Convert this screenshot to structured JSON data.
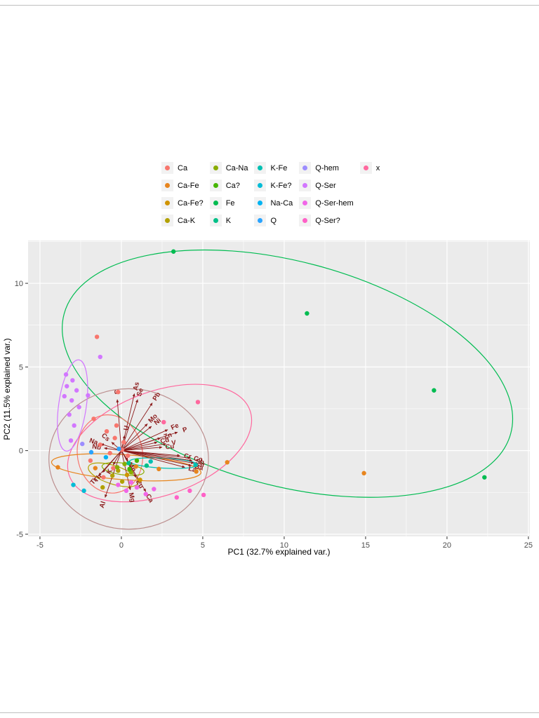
{
  "page": {
    "background": "#FFFFFF"
  },
  "axis": {
    "xlabel": "PC1 (32.7% explained var.)",
    "ylabel": "PC2 (11.5% explained var.)"
  },
  "chart_data": {
    "type": "scatter",
    "title": "",
    "xlabel": "PC1 (32.7% explained var.)",
    "ylabel": "PC2 (11.5% explained var.)",
    "xlim": [
      -5.73,
      25.09
    ],
    "ylim": [
      -5.13,
      12.56
    ],
    "x_ticks": [
      -5,
      0,
      5,
      10,
      15,
      20,
      25
    ],
    "y_ticks": [
      -5,
      0,
      5,
      10
    ],
    "x_minor": [
      -2.5,
      2.5,
      7.5,
      12.5,
      17.5,
      22.5
    ],
    "y_minor": [
      -2.5,
      2.5,
      7.5,
      12.5
    ],
    "panel_bg": "#EBEBEB",
    "grid_color": "#FFFFFF",
    "axis_text_color": "#4D4D4D",
    "arrow_color": "#8B1A1A",
    "legend_position": "top",
    "grid": true,
    "groups": [
      {
        "name": "Ca",
        "color": "#F8766D"
      },
      {
        "name": "Ca-Fe",
        "color": "#E7851E"
      },
      {
        "name": "Ca-Fe?",
        "color": "#D09400"
      },
      {
        "name": "Ca-K",
        "color": "#B2A100"
      },
      {
        "name": "Ca-Na",
        "color": "#89AC00"
      },
      {
        "name": "Ca?",
        "color": "#45B500"
      },
      {
        "name": "Fe",
        "color": "#00BC51"
      },
      {
        "name": "K",
        "color": "#00C087"
      },
      {
        "name": "K-Fe",
        "color": "#00C0B2"
      },
      {
        "name": "K-Fe?",
        "color": "#00BCD6"
      },
      {
        "name": "Na-Ca",
        "color": "#00B3F2"
      },
      {
        "name": "Q",
        "color": "#29A3FF"
      },
      {
        "name": "Q-hem",
        "color": "#9C8DFF"
      },
      {
        "name": "Q-Ser",
        "color": "#D277FF"
      },
      {
        "name": "Q-Ser-hem",
        "color": "#F166E8"
      },
      {
        "name": "Q-Ser?",
        "color": "#FF61C7"
      },
      {
        "name": "x",
        "color": "#FF689E"
      }
    ],
    "points": [
      {
        "g": "Fe",
        "x": 3.2,
        "y": 11.9
      },
      {
        "g": "Fe",
        "x": 11.4,
        "y": 8.2
      },
      {
        "g": "Fe",
        "x": 19.2,
        "y": 3.6
      },
      {
        "g": "Fe",
        "x": 22.3,
        "y": -1.6
      },
      {
        "g": "Ca-Fe",
        "x": 14.9,
        "y": -1.35
      },
      {
        "g": "Ca-Fe",
        "x": 6.5,
        "y": -0.7
      },
      {
        "g": "Ca-Fe",
        "x": 4.6,
        "y": -1.25
      },
      {
        "g": "Ca-Fe",
        "x": 2.3,
        "y": -1.1
      },
      {
        "g": "Ca-Fe",
        "x": -3.9,
        "y": -1.0
      },
      {
        "g": "Ca-Fe",
        "x": -1.6,
        "y": -1.05
      },
      {
        "g": "Ca-Fe",
        "x": 0.9,
        "y": -0.95
      },
      {
        "g": "Ca",
        "x": -1.5,
        "y": 6.8
      },
      {
        "g": "Ca",
        "x": -0.2,
        "y": 3.5
      },
      {
        "g": "Ca",
        "x": -1.7,
        "y": 1.9
      },
      {
        "g": "Ca",
        "x": -0.9,
        "y": 1.15
      },
      {
        "g": "Ca",
        "x": -0.4,
        "y": 0.75
      },
      {
        "g": "Ca",
        "x": -1.3,
        "y": 0.35
      },
      {
        "g": "Ca",
        "x": -0.7,
        "y": -0.15
      },
      {
        "g": "Ca",
        "x": 0.15,
        "y": 0.5
      },
      {
        "g": "Ca",
        "x": -1.9,
        "y": -0.6
      },
      {
        "g": "Ca",
        "x": -0.5,
        "y": -1.05
      },
      {
        "g": "Ca",
        "x": 0.4,
        "y": -0.3
      },
      {
        "g": "Ca",
        "x": -1.1,
        "y": -1.6
      },
      {
        "g": "Ca",
        "x": 0.05,
        "y": 0.05
      },
      {
        "g": "Ca",
        "x": -0.3,
        "y": 1.5
      },
      {
        "g": "Q-Ser",
        "x": -1.3,
        "y": 5.6
      },
      {
        "g": "Q-Ser",
        "x": -3.4,
        "y": 4.55
      },
      {
        "g": "Q-Ser",
        "x": -3.0,
        "y": 4.2
      },
      {
        "g": "Q-Ser",
        "x": -3.35,
        "y": 3.85
      },
      {
        "g": "Q-Ser",
        "x": -2.75,
        "y": 3.6
      },
      {
        "g": "Q-Ser",
        "x": -3.5,
        "y": 3.25
      },
      {
        "g": "Q-Ser",
        "x": -3.05,
        "y": 3.0
      },
      {
        "g": "Q-Ser",
        "x": -2.6,
        "y": 2.6
      },
      {
        "g": "Q-Ser",
        "x": -3.2,
        "y": 2.15
      },
      {
        "g": "Q-Ser",
        "x": -2.9,
        "y": 1.5
      },
      {
        "g": "Q-Ser",
        "x": -3.1,
        "y": 0.6
      },
      {
        "g": "Q-Ser",
        "x": -2.05,
        "y": 3.3
      },
      {
        "g": "Q-Ser-hem",
        "x": 0.3,
        "y": -2.4
      },
      {
        "g": "Q-Ser-hem",
        "x": 0.95,
        "y": -2.2
      },
      {
        "g": "Q-Ser-hem",
        "x": 1.5,
        "y": -2.6
      },
      {
        "g": "Q-Ser-hem",
        "x": -0.2,
        "y": -2.05
      },
      {
        "g": "Q-Ser-hem",
        "x": 2.0,
        "y": -2.3
      },
      {
        "g": "Q-Ser-hem",
        "x": 0.6,
        "y": -1.9
      },
      {
        "g": "Q-Ser?",
        "x": 4.2,
        "y": -2.4
      },
      {
        "g": "Q-Ser?",
        "x": 5.05,
        "y": -2.65
      },
      {
        "g": "Q-Ser?",
        "x": 3.4,
        "y": -2.8
      },
      {
        "g": "x",
        "x": 2.6,
        "y": 1.7
      },
      {
        "g": "x",
        "x": 4.7,
        "y": 2.9
      },
      {
        "g": "Ca-K",
        "x": -0.55,
        "y": -1.5
      },
      {
        "g": "Ca-K",
        "x": 0.05,
        "y": -1.85
      },
      {
        "g": "Ca-K",
        "x": -1.15,
        "y": -2.2
      },
      {
        "g": "Ca-K",
        "x": -0.2,
        "y": -1.2
      },
      {
        "g": "Ca-Fe?",
        "x": 0.35,
        "y": -1.45
      },
      {
        "g": "Ca-Fe?",
        "x": 1.15,
        "y": -1.75
      },
      {
        "g": "Ca-Na",
        "x": -0.25,
        "y": -1.0
      },
      {
        "g": "Ca-Na",
        "x": 0.6,
        "y": -1.3
      },
      {
        "g": "Ca-Na",
        "x": 0.2,
        "y": -0.8
      },
      {
        "g": "Ca?",
        "x": 0.95,
        "y": -0.6
      },
      {
        "g": "Ca?",
        "x": 0.5,
        "y": -1.1
      },
      {
        "g": "K",
        "x": 0.45,
        "y": -0.75
      },
      {
        "g": "K",
        "x": 1.55,
        "y": -0.9
      },
      {
        "g": "K-Fe",
        "x": 4.55,
        "y": -0.85
      },
      {
        "g": "K-Fe",
        "x": 1.8,
        "y": -0.65
      },
      {
        "g": "K-Fe?",
        "x": -2.95,
        "y": -2.05
      },
      {
        "g": "K-Fe?",
        "x": -2.3,
        "y": -2.4
      },
      {
        "g": "Na-Ca",
        "x": -0.95,
        "y": -0.4
      },
      {
        "g": "Q",
        "x": -1.85,
        "y": -0.1
      },
      {
        "g": "Q",
        "x": -0.15,
        "y": 0.1
      },
      {
        "g": "Q-hem",
        "x": -2.4,
        "y": 0.4
      }
    ],
    "ellipses": [
      {
        "g": "Fe",
        "color": "#00BC51",
        "cx": 10.2,
        "cy": 4.6,
        "rx": 14.2,
        "ry": 6.7,
        "rot": -15
      },
      {
        "g": "x",
        "color": "#FF689E",
        "cx": 2.35,
        "cy": 0.45,
        "rx": 5.9,
        "ry": 3.1,
        "rot": 20
      },
      {
        "g": "Q-Ser-hem",
        "color": "#BC8F8F",
        "cx": 0.45,
        "cy": -0.5,
        "rx": 4.9,
        "ry": 4.2,
        "rot": 0
      },
      {
        "g": "Ca",
        "color": "#F8766D",
        "cx": -0.7,
        "cy": -0.2,
        "rx": 2.0,
        "ry": 2.35,
        "rot": 10
      },
      {
        "g": "Ca-Fe",
        "color": "#E7851E",
        "cx": 0.3,
        "cy": -1.0,
        "rx": 4.6,
        "ry": 0.75,
        "rot": -4
      },
      {
        "g": "Q-Ser",
        "color": "#D277FF",
        "cx": -3.0,
        "cy": 2.7,
        "rx": 0.85,
        "ry": 2.75,
        "rot": -8
      },
      {
        "g": "K-Fe",
        "color": "#00C0B2",
        "cx": 2.6,
        "cy": -0.75,
        "rx": 2.1,
        "ry": 0.3,
        "rot": -3
      },
      {
        "g": "Ca-K",
        "color": "#B2A100",
        "cx": -0.5,
        "cy": -1.45,
        "rx": 1.6,
        "ry": 0.55,
        "rot": -18
      },
      {
        "g": "Ca-Na",
        "color": "#89AC00",
        "cx": 0.1,
        "cy": -1.1,
        "rx": 1.3,
        "ry": 0.35,
        "rot": -8
      }
    ],
    "arrows": [
      {
        "label": "S",
        "x": -0.25,
        "y": 3.05
      },
      {
        "label": "As",
        "x": 0.8,
        "y": 3.4
      },
      {
        "label": "Se",
        "x": 1.0,
        "y": 3.05
      },
      {
        "label": "Pb",
        "x": 1.9,
        "y": 2.85
      },
      {
        "label": "Mo",
        "x": 1.6,
        "y": 1.6
      },
      {
        "label": "Ni",
        "x": 1.85,
        "y": 1.45
      },
      {
        "label": "Fe",
        "x": 2.85,
        "y": 1.25
      },
      {
        "label": "P",
        "x": 3.45,
        "y": 1.1
      },
      {
        "label": "Zn",
        "x": 2.4,
        "y": 0.75
      },
      {
        "label": "Cd",
        "x": 2.2,
        "y": 0.5
      },
      {
        "label": "V",
        "x": 2.75,
        "y": 0.4
      },
      {
        "label": "Cu",
        "x": 2.5,
        "y": 0.2
      },
      {
        "label": "Cr",
        "x": 3.6,
        "y": -0.3
      },
      {
        "label": "Co",
        "x": 4.25,
        "y": -0.45
      },
      {
        "label": "Sb",
        "x": 4.35,
        "y": -0.6
      },
      {
        "label": "Sr",
        "x": 4.45,
        "y": -0.75
      },
      {
        "label": "Ba",
        "x": 4.3,
        "y": -0.9
      },
      {
        "label": "La",
        "x": 3.9,
        "y": -1.0
      },
      {
        "label": "Na",
        "x": -1.25,
        "y": 0.4
      },
      {
        "label": "Nb",
        "x": -1.05,
        "y": 0.15
      },
      {
        "label": "Ti",
        "x": -1.4,
        "y": -1.5
      },
      {
        "label": "Th",
        "x": -1.15,
        "y": -1.3
      },
      {
        "label": "Al",
        "x": -1.0,
        "y": -2.8
      },
      {
        "label": "Mg",
        "x": 0.55,
        "y": -2.35
      },
      {
        "label": "Ca",
        "x": 1.5,
        "y": -2.45
      },
      {
        "label": "Eu",
        "x": 0.9,
        "y": -1.6
      },
      {
        "label": "Mn",
        "x": 0.4,
        "y": -0.6
      },
      {
        "label": "K",
        "x": -0.5,
        "y": -0.85
      },
      {
        "label": "U",
        "x": 0.2,
        "y": 0.9
      },
      {
        "label": "Cs",
        "x": -0.6,
        "y": 0.5
      }
    ]
  }
}
